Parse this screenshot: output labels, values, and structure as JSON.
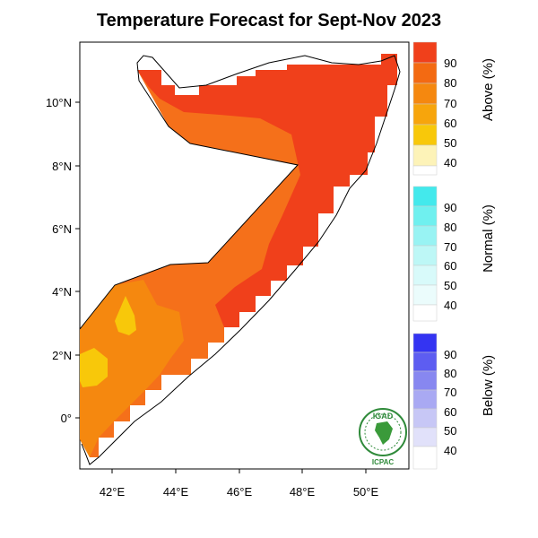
{
  "title": "Temperature Forecast for Sept-Nov 2023",
  "axes": {
    "lat_ticks": [
      "10°N",
      "8°N",
      "6°N",
      "4°N",
      "2°N",
      "0°"
    ],
    "lon_ticks": [
      "42°E",
      "44°E",
      "46°E",
      "48°E",
      "50°E"
    ]
  },
  "legend": {
    "above": {
      "title": "Above (%)",
      "levels": [
        "90",
        "80",
        "70",
        "60",
        "50",
        "40"
      ],
      "colors": [
        "#f0401b",
        "#f36a12",
        "#f5880f",
        "#f7a50c",
        "#f8c80a",
        "#fdf3b8"
      ]
    },
    "normal": {
      "title": "Normal (%)",
      "levels": [
        "90",
        "80",
        "70",
        "60",
        "50",
        "40"
      ],
      "colors": [
        "#43e9ec",
        "#6ff0ef",
        "#98f3f3",
        "#bdf7f6",
        "#d8fafa",
        "#ebfcfc"
      ]
    },
    "below": {
      "title": "Below (%)",
      "levels": [
        "90",
        "80",
        "70",
        "60",
        "50",
        "40"
      ],
      "colors": [
        "#3434f2",
        "#5d5df1",
        "#8787f0",
        "#a9a9f3",
        "#c7c7f6",
        "#e1e1fa"
      ]
    }
  },
  "logo": {
    "top_text": "IGAD",
    "bottom_text": "ICPAC"
  }
}
